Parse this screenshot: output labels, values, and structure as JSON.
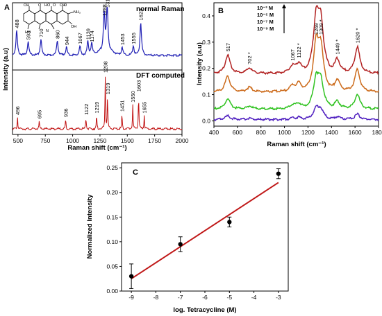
{
  "colors": {
    "blue": "#1f1fb4",
    "red": "#c01010",
    "B_red": "#b22222",
    "B_orange": "#cc6a1a",
    "B_green": "#2fc21f",
    "B_purple": "#5020c0",
    "fit": "#c01818"
  },
  "chart_data": [
    {
      "panel": "A",
      "type": "line",
      "xlabel": "Raman shift (cm⁻¹)",
      "ylabel": "Intensity (a.u)",
      "xlim": [
        450,
        2000
      ],
      "xticks": [
        "500",
        "750",
        "1000",
        "1250",
        "1500",
        "1750",
        "2000"
      ],
      "molecule_labels": [
        "OH",
        "O",
        "HO",
        "O",
        "OH",
        "O",
        "NH₂",
        "HO",
        "N",
        "OH"
      ],
      "subpanels": [
        {
          "name": "normal Raman",
          "color": "blue",
          "peaks": [
            {
              "x": 488,
              "h": 0.55,
              "label": "488"
            },
            {
              "x": 593,
              "h": 0.3,
              "label": "593"
            },
            {
              "x": 710,
              "h": 0.35,
              "label": "710"
            },
            {
              "x": 860,
              "h": 0.32,
              "label": "860"
            },
            {
              "x": 944,
              "h": 0.18,
              "label": "944"
            },
            {
              "x": 1067,
              "h": 0.2,
              "label": "1067"
            },
            {
              "x": 1139,
              "h": 0.3,
              "label": "1139"
            },
            {
              "x": 1174,
              "h": 0.25,
              "label": "1174"
            },
            {
              "x": 1288,
              "h": 0.82,
              "label": "1288"
            },
            {
              "x": 1316,
              "h": 1.0,
              "label": "1316"
            },
            {
              "x": 1453,
              "h": 0.18,
              "label": "1453"
            },
            {
              "x": 1555,
              "h": 0.2,
              "label": "1555"
            },
            {
              "x": 1623,
              "h": 0.72,
              "label": "1623"
            }
          ]
        },
        {
          "name": "DFT computed",
          "color": "red",
          "peaks": [
            {
              "x": 496,
              "h": 0.22,
              "label": "496"
            },
            {
              "x": 695,
              "h": 0.15,
              "label": "695"
            },
            {
              "x": 936,
              "h": 0.18,
              "label": "936"
            },
            {
              "x": 1122,
              "h": 0.22,
              "label": "1122"
            },
            {
              "x": 1219,
              "h": 0.25,
              "label": "1219"
            },
            {
              "x": 1298,
              "h": 1.0,
              "label": "1298"
            },
            {
              "x": 1319,
              "h": 0.6,
              "label": "1319"
            },
            {
              "x": 1451,
              "h": 0.28,
              "label": "1451"
            },
            {
              "x": 1550,
              "h": 0.45,
              "label": "1550"
            },
            {
              "x": 1603,
              "h": 0.65,
              "label": "1603"
            },
            {
              "x": 1655,
              "h": 0.25,
              "label": "1655"
            }
          ]
        }
      ]
    },
    {
      "panel": "B",
      "type": "line",
      "xlabel": "Raman shift (cm⁻¹)",
      "ylabel": "Intensity (a.u)",
      "xlim": [
        400,
        1800
      ],
      "ylim": [
        -0.02,
        0.45
      ],
      "xticks": [
        "400",
        "600",
        "800",
        "1000",
        "1200",
        "1400",
        "1600",
        "1800"
      ],
      "yticks": [
        "0.0",
        "0.1",
        "0.2",
        "0.3",
        "0.4"
      ],
      "legend": [
        "10⁻³ M",
        "10⁻⁵ M",
        "10⁻⁷ M",
        "10⁻⁹ M"
      ],
      "series": [
        {
          "name": "10⁻³ M",
          "color": "B_red",
          "base": 0.18,
          "amp": 1.0
        },
        {
          "name": "10⁻⁵ M",
          "color": "B_orange",
          "base": 0.11,
          "amp": 0.85
        },
        {
          "name": "10⁻⁷ M",
          "color": "B_green",
          "base": 0.045,
          "amp": 0.55
        },
        {
          "name": "10⁻⁹ M",
          "color": "B_purple",
          "base": 0.005,
          "amp": 0.2
        }
      ],
      "peaks": [
        {
          "x": 517,
          "h": 0.07,
          "label": "517"
        },
        {
          "x": 702,
          "h": 0.02,
          "label": "702 *"
        },
        {
          "x": 1067,
          "h": 0.025,
          "label": "1067"
        },
        {
          "x": 1122,
          "h": 0.035,
          "label": "1122 *"
        },
        {
          "x": 1269,
          "h": 0.16,
          "label": "1269"
        },
        {
          "x": 1309,
          "h": 0.14,
          "label": "1309 *"
        },
        {
          "x": 1449,
          "h": 0.05,
          "label": "1449 *"
        },
        {
          "x": 1620,
          "h": 0.1,
          "label": "1620 *"
        }
      ]
    },
    {
      "panel": "C",
      "type": "scatter",
      "xlabel": "log. Tetracycline (M)",
      "ylabel": "Normalized Intensity",
      "xlim": [
        -9.4,
        -2.6
      ],
      "ylim": [
        0.0,
        0.26
      ],
      "xticks": [
        "-9",
        "-8",
        "-7",
        "-6",
        "-5",
        "-4",
        "-3"
      ],
      "yticks": [
        "0.00",
        "0.05",
        "0.10",
        "0.15",
        "0.20",
        "0.25"
      ],
      "points": [
        {
          "x": -9,
          "y": 0.03,
          "err": 0.025
        },
        {
          "x": -7,
          "y": 0.095,
          "err": 0.015
        },
        {
          "x": -5,
          "y": 0.14,
          "err": 0.01
        },
        {
          "x": -3,
          "y": 0.238,
          "err": 0.01
        }
      ],
      "fit": {
        "x": [
          -9,
          -3
        ],
        "y": [
          0.025,
          0.22
        ]
      }
    }
  ]
}
